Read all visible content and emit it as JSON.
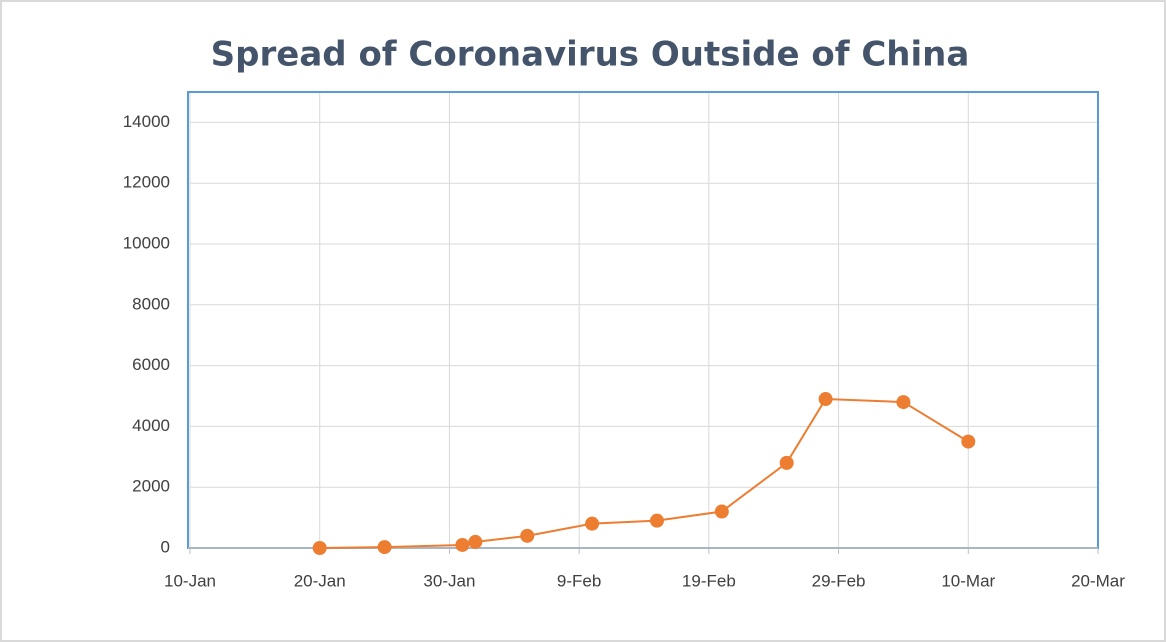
{
  "chart_data": {
    "type": "line",
    "title": "Spread of Coronavirus Outside of China",
    "x": [
      20,
      25,
      31,
      32,
      36,
      41,
      46,
      51,
      56,
      59,
      65,
      70
    ],
    "values": [
      0,
      30,
      100,
      200,
      400,
      800,
      900,
      1200,
      2800,
      4900,
      4800,
      3500
    ],
    "color": "#ed7d31",
    "markers": true,
    "xlim": [
      10,
      80
    ],
    "xticks": [
      {
        "value": 10,
        "label": "10-Jan"
      },
      {
        "value": 20,
        "label": "20-Jan"
      },
      {
        "value": 30,
        "label": "30-Jan"
      },
      {
        "value": 40,
        "label": "9-Feb"
      },
      {
        "value": 50,
        "label": "19-Feb"
      },
      {
        "value": 60,
        "label": "29-Feb"
      },
      {
        "value": 70,
        "label": "10-Mar"
      },
      {
        "value": 80,
        "label": "20-Mar"
      }
    ],
    "ylim": [
      0,
      15000
    ],
    "yticks": [
      0,
      2000,
      4000,
      6000,
      8000,
      10000,
      12000,
      14000
    ],
    "grid": true
  }
}
